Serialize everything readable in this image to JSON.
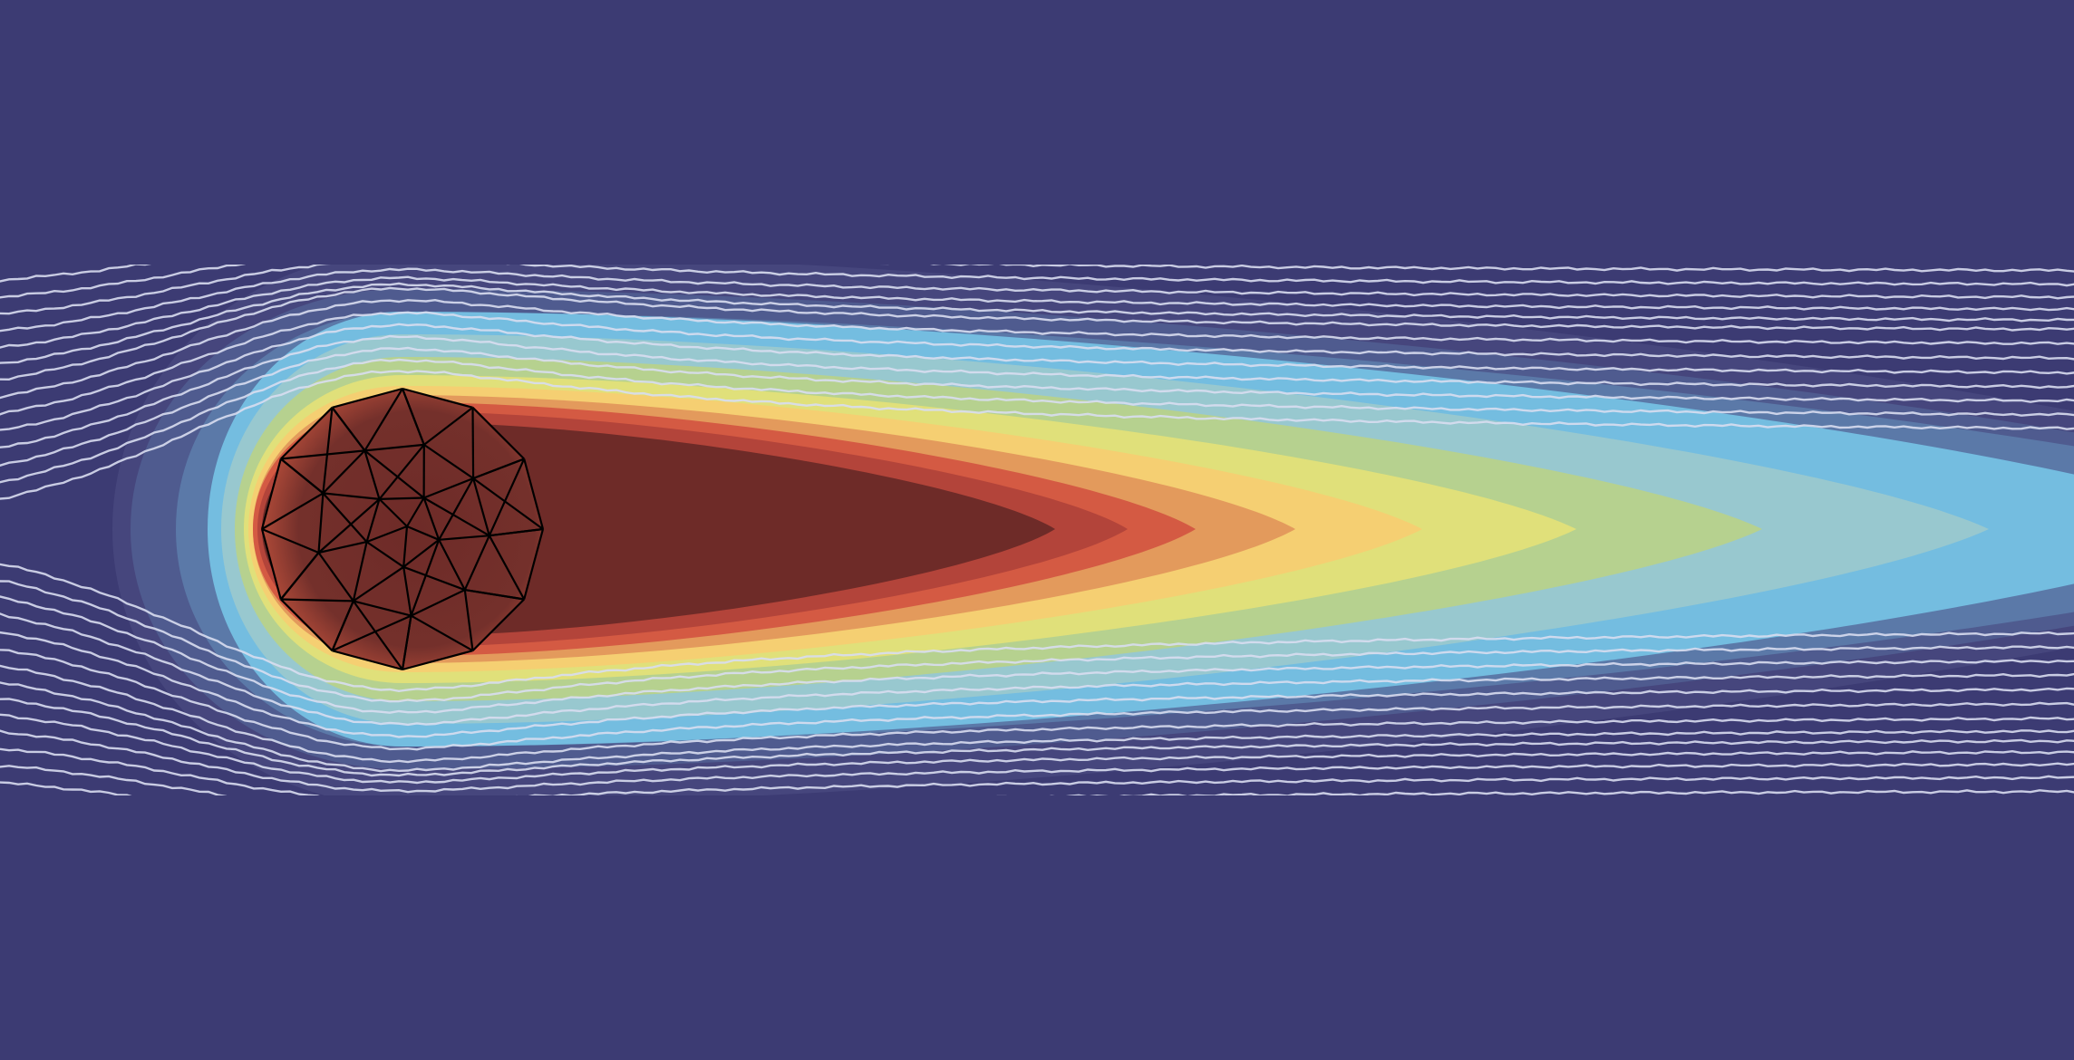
{
  "figure": {
    "colors": {
      "background": "#3c3b73",
      "contour_levels": [
        "#46467d",
        "#4f5b8f",
        "#5b79a8",
        "#74bde0",
        "#98c8cf",
        "#b6d18f",
        "#e0e07a",
        "#f5cf72",
        "#e39a5c",
        "#d45a43",
        "#b3443a",
        "#6e2b28"
      ],
      "streamline": "#d8ddf0",
      "mesh_edge": "#000000",
      "obstacle_fill": "#6e2b28"
    },
    "obstacle": {
      "shape": "dodecagon",
      "mesh": "triangulated"
    },
    "streamlines": {
      "count": 30
    }
  }
}
